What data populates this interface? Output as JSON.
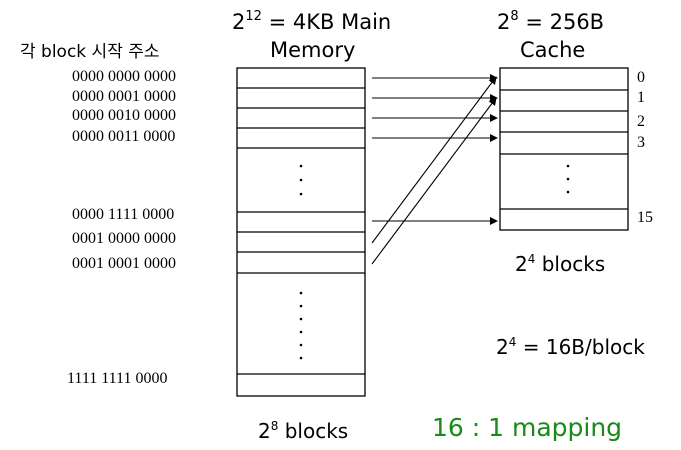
{
  "colors": {
    "mapping": "#1a8a1a",
    "line": "#000000"
  },
  "left_header": "각 block 시작 주소",
  "memory": {
    "title_base": "2",
    "title_exp": "12",
    "title_rest": " = 4KB Main",
    "title_line2": "Memory",
    "footer_base": "2",
    "footer_exp": "8",
    "footer_rest": " blocks",
    "addresses": [
      "0000 0000 0000",
      "0000 0001 0000",
      "0000 0010 0000",
      "0000 0011 0000",
      "0000 1111 0000",
      "0001 0000 0000",
      "0001 0001 0000",
      "1111 1111 0000"
    ]
  },
  "cache": {
    "title_base": "2",
    "title_exp": "8",
    "title_rest": " = 256B",
    "title_line2": "Cache",
    "index_labels": [
      "0",
      "1",
      "2",
      "3",
      "15"
    ],
    "blocks_base": "2",
    "blocks_exp": "4",
    "blocks_rest": " blocks",
    "block_size_base": "2",
    "block_size_exp": "4",
    "block_size_rest": " = 16B/block"
  },
  "mapping_label": "16 : 1 mapping"
}
